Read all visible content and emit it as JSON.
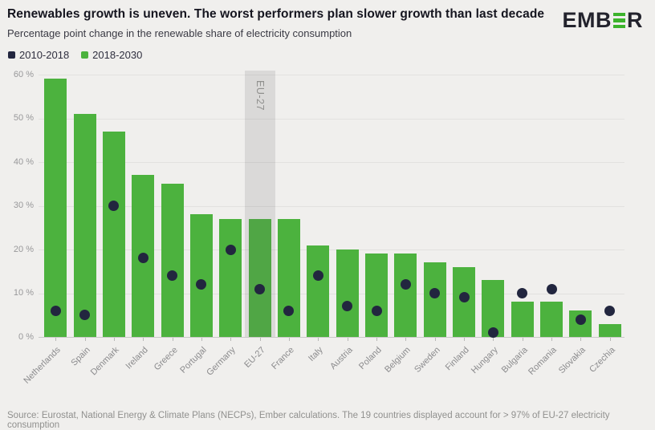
{
  "header": {
    "logo": {
      "part_left": "EMB",
      "stylized_letter": "E",
      "part_right": "R",
      "dark_color": "#23232d",
      "green_color": "#3cb32c"
    }
  },
  "chart_data": {
    "type": "bar",
    "title": "Renewables growth is uneven. The worst performers plan slower growth than last decade",
    "subtitle": "Percentage point change in the renewable share of electricity consumption",
    "source": "Source: Eurostat, National Energy & Climate Plans (NECPs), Ember calculations. The 19 countries displayed account for > 97% of EU-27 electricity consumption",
    "categories": [
      "Netherlands",
      "Spain",
      "Denmark",
      "Ireland",
      "Greece",
      "Portugal",
      "Germany",
      "EU-27",
      "France",
      "Italy",
      "Austria",
      "Poland",
      "Belgium",
      "Sweden",
      "Finland",
      "Hungary",
      "Bulgaria",
      "Romania",
      "Slovakia",
      "Czechia"
    ],
    "series": [
      {
        "name": "2010-2018",
        "type": "scatter",
        "color": "#22263f",
        "values": [
          6,
          5,
          30,
          18,
          14,
          12,
          20,
          11,
          6,
          14,
          7,
          6,
          12,
          10,
          9,
          1,
          10,
          11,
          4,
          6
        ]
      },
      {
        "name": "2018-2030",
        "type": "bar",
        "color": "#4cb23e",
        "values": [
          59,
          51,
          47,
          37,
          35,
          28,
          27,
          27,
          27,
          21,
          20,
          19,
          19,
          17,
          16,
          13,
          8,
          8,
          6,
          3
        ]
      }
    ],
    "highlight": {
      "category": "EU-27",
      "band_color": "rgba(105,105,105,0.16)"
    },
    "ylim": [
      0,
      60
    ],
    "yticks": [
      0,
      10,
      20,
      30,
      40,
      50,
      60
    ],
    "ytick_suffix": " %",
    "grid": true,
    "legend_position": "top-left",
    "x_label_angle": -45
  }
}
